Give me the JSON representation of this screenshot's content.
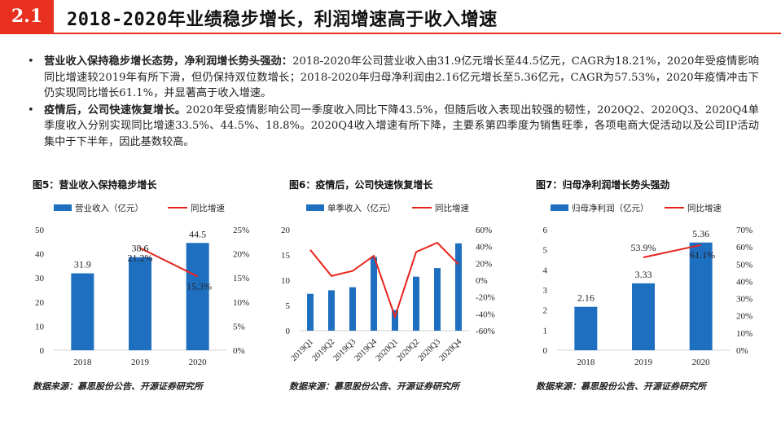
{
  "header": {
    "section": "2.1",
    "title": "2018-2020年业绩稳步增长，利润增速高于收入增速"
  },
  "bullets": [
    {
      "lead": "营业收入保持稳步增长态势，净利润增长势头强劲：",
      "text": "2018-2020年公司营业收入由31.9亿元增长至44.5亿元，CAGR为18.21%，2020年受疫情影响同比增速较2019年有所下滑，但仍保持双位数增长；2018-2020年归母净利润由2.16亿元增长至5.36亿元，CAGR为57.53%，2020年疫情冲击下仍实现同比增长61.1%，并显著高于收入增速。"
    },
    {
      "lead": "疫情后，公司快速恢复增长。",
      "text": "2020年受疫情影响公司一季度收入同比下降43.5%，但随后收入表现出较强的韧性，2020Q2、2020Q3、2020Q4单季度收入分别实现同比增速33.5%、44.5%、18.8%。2020Q4收入增速有所下降，主要系第四季度为销售旺季，各项电商大促活动以及公司IP活动集中于下半年，因此基数较高。"
    }
  ],
  "figures": [
    {
      "title": "图5：营业收入保持稳步增长",
      "source": "数据来源：慕思股份公告、开源证券研究所"
    },
    {
      "title": "图6：疫情后，公司快速恢复增长",
      "source": "数据来源：慕思股份公告、开源证券研究所"
    },
    {
      "title": "图7：归母净利润增长势头强劲",
      "source": "数据来源：慕思股份公告、开源证券研究所"
    }
  ],
  "colors": {
    "bar": "#1f6fc0",
    "line": "#e8231c",
    "accent": "#e8301f"
  },
  "chart_data": [
    {
      "type": "bar",
      "categories": [
        "2018",
        "2019",
        "2020"
      ],
      "series": [
        {
          "name": "营业收入（亿元）",
          "axis": "left",
          "kind": "bar",
          "values": [
            31.9,
            38.6,
            44.5
          ]
        },
        {
          "name": "同比增速",
          "axis": "right",
          "kind": "line",
          "values": [
            null,
            21.2,
            15.3
          ]
        }
      ],
      "bar_labels": [
        "31.9",
        "38.6",
        "44.5"
      ],
      "line_labels": [
        null,
        "21.2%",
        "15.3%"
      ],
      "ylim": [
        0,
        50
      ],
      "yticks": [
        0,
        10,
        20,
        30,
        40,
        50
      ],
      "ytick_labels": [
        "0",
        "10",
        "20",
        "30",
        "40",
        "50"
      ],
      "y2lim": [
        0,
        25
      ],
      "y2ticks": [
        0,
        5,
        10,
        15,
        20,
        25
      ],
      "y2tick_labels": [
        "0%",
        "5%",
        "10%",
        "15%",
        "20%",
        "25%"
      ],
      "legend": "top"
    },
    {
      "type": "bar",
      "categories": [
        "2019Q1",
        "2019Q2",
        "2019Q3",
        "2019Q4",
        "2020Q1",
        "2020Q2",
        "2020Q3",
        "2020Q4"
      ],
      "series": [
        {
          "name": "单季收入（亿元）",
          "axis": "left",
          "kind": "bar",
          "values": [
            7.3,
            8.0,
            8.6,
            14.6,
            4.1,
            10.7,
            12.4,
            17.3
          ]
        },
        {
          "name": "同比增速",
          "axis": "right",
          "kind": "line",
          "values": [
            36,
            5,
            11,
            29,
            -43.5,
            33.5,
            44.5,
            18.8
          ]
        }
      ],
      "ylim": [
        0,
        20
      ],
      "yticks": [
        0,
        5,
        10,
        15,
        20
      ],
      "ytick_labels": [
        "0",
        "5",
        "10",
        "15",
        "20"
      ],
      "y2lim": [
        -60,
        60
      ],
      "y2ticks": [
        -60,
        -40,
        -20,
        0,
        20,
        40,
        60
      ],
      "y2tick_labels": [
        "-60%",
        "-40%",
        "-20%",
        "0%",
        "20%",
        "40%",
        "60%"
      ],
      "legend": "top"
    },
    {
      "type": "bar",
      "categories": [
        "2018",
        "2019",
        "2020"
      ],
      "series": [
        {
          "name": "归母净利润（亿元）",
          "axis": "left",
          "kind": "bar",
          "values": [
            2.16,
            3.33,
            5.36
          ]
        },
        {
          "name": "同比增速",
          "axis": "right",
          "kind": "line",
          "values": [
            null,
            53.9,
            61.1
          ]
        }
      ],
      "bar_labels": [
        "2.16",
        "3.33",
        "5.36"
      ],
      "line_labels": [
        null,
        "53.9%",
        "61.1%"
      ],
      "ylim": [
        0,
        6
      ],
      "yticks": [
        0,
        1,
        2,
        3,
        4,
        5,
        6
      ],
      "ytick_labels": [
        "0",
        "1",
        "2",
        "3",
        "4",
        "5",
        "6"
      ],
      "y2lim": [
        0,
        70
      ],
      "y2ticks": [
        0,
        10,
        20,
        30,
        40,
        50,
        60,
        70
      ],
      "y2tick_labels": [
        "0%",
        "10%",
        "20%",
        "30%",
        "40%",
        "50%",
        "60%",
        "70%"
      ],
      "legend": "top"
    }
  ]
}
